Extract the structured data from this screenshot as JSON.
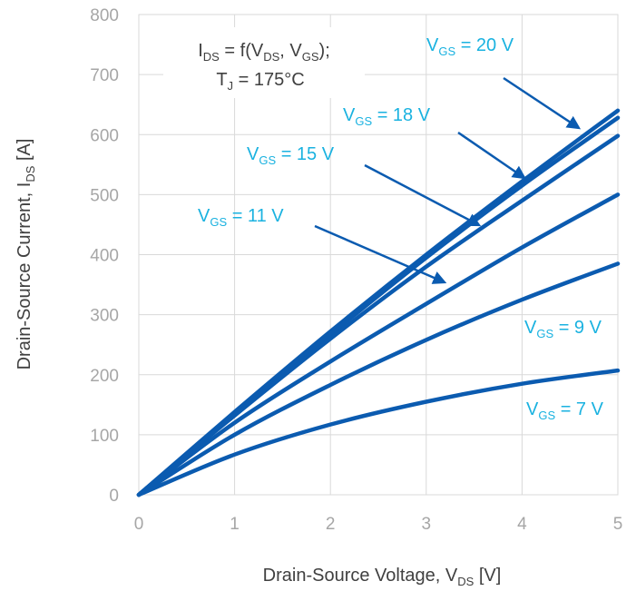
{
  "chart_data": {
    "type": "line",
    "xlabel": {
      "main": "Drain-Source Voltage, V",
      "sub": "DS",
      "unit": " [V]"
    },
    "ylabel": {
      "main": "Drain-Source Current, I",
      "sub": "DS",
      "unit": " [A]"
    },
    "xlim": [
      0,
      5
    ],
    "ylim": [
      0,
      800
    ],
    "x_ticks": [
      "0",
      "1",
      "2",
      "3",
      "4",
      "5"
    ],
    "y_ticks": [
      "0",
      "100",
      "200",
      "300",
      "400",
      "500",
      "600",
      "700",
      "800"
    ],
    "grid": true,
    "annotation": {
      "line1": {
        "a": "I",
        "a_sub": "DS",
        "b": " = f(V",
        "b_sub": "DS",
        "c": ", V",
        "c_sub": "GS",
        "d": ");"
      },
      "line2": {
        "a": "T",
        "a_sub": "J",
        "b": " = 175°C"
      }
    },
    "colors": {
      "series": "#0b5bb0",
      "label": "#1ab2e0",
      "grid": "#d9d9d9"
    },
    "series": [
      {
        "name": "V_GS = 20 V",
        "label": {
          "prefix": "V",
          "sub": "GS",
          "suffix": " = 20 V"
        },
        "x": [
          0,
          1,
          2,
          3,
          4,
          5
        ],
        "values": [
          0,
          138,
          272,
          400,
          522,
          640
        ]
      },
      {
        "name": "V_GS = 18 V",
        "label": {
          "prefix": "V",
          "sub": "GS",
          "suffix": " = 18 V"
        },
        "x": [
          0,
          1,
          2,
          3,
          4,
          5
        ],
        "values": [
          0,
          135,
          267,
          395,
          515,
          628
        ]
      },
      {
        "name": "V_GS = 15 V",
        "label": {
          "prefix": "V",
          "sub": "GS",
          "suffix": " = 15 V"
        },
        "x": [
          0,
          1,
          2,
          3,
          4,
          5
        ],
        "values": [
          0,
          132,
          260,
          380,
          490,
          598
        ]
      },
      {
        "name": "V_GS = 11 V",
        "label": {
          "prefix": "V",
          "sub": "GS",
          "suffix": " = 11 V"
        },
        "x": [
          0,
          1,
          2,
          3,
          4,
          5
        ],
        "values": [
          0,
          120,
          222,
          318,
          412,
          500
        ]
      },
      {
        "name": "V_GS = 9 V",
        "label": {
          "prefix": "V",
          "sub": "GS",
          "suffix": " = 9 V"
        },
        "x": [
          0,
          1,
          2,
          3,
          4,
          5
        ],
        "values": [
          0,
          100,
          183,
          258,
          325,
          385
        ]
      },
      {
        "name": "V_GS = 7 V",
        "label": {
          "prefix": "V",
          "sub": "GS",
          "suffix": " = 7 V"
        },
        "x": [
          0,
          1,
          2,
          3,
          4,
          5
        ],
        "values": [
          0,
          67,
          117,
          155,
          185,
          207
        ]
      }
    ]
  }
}
